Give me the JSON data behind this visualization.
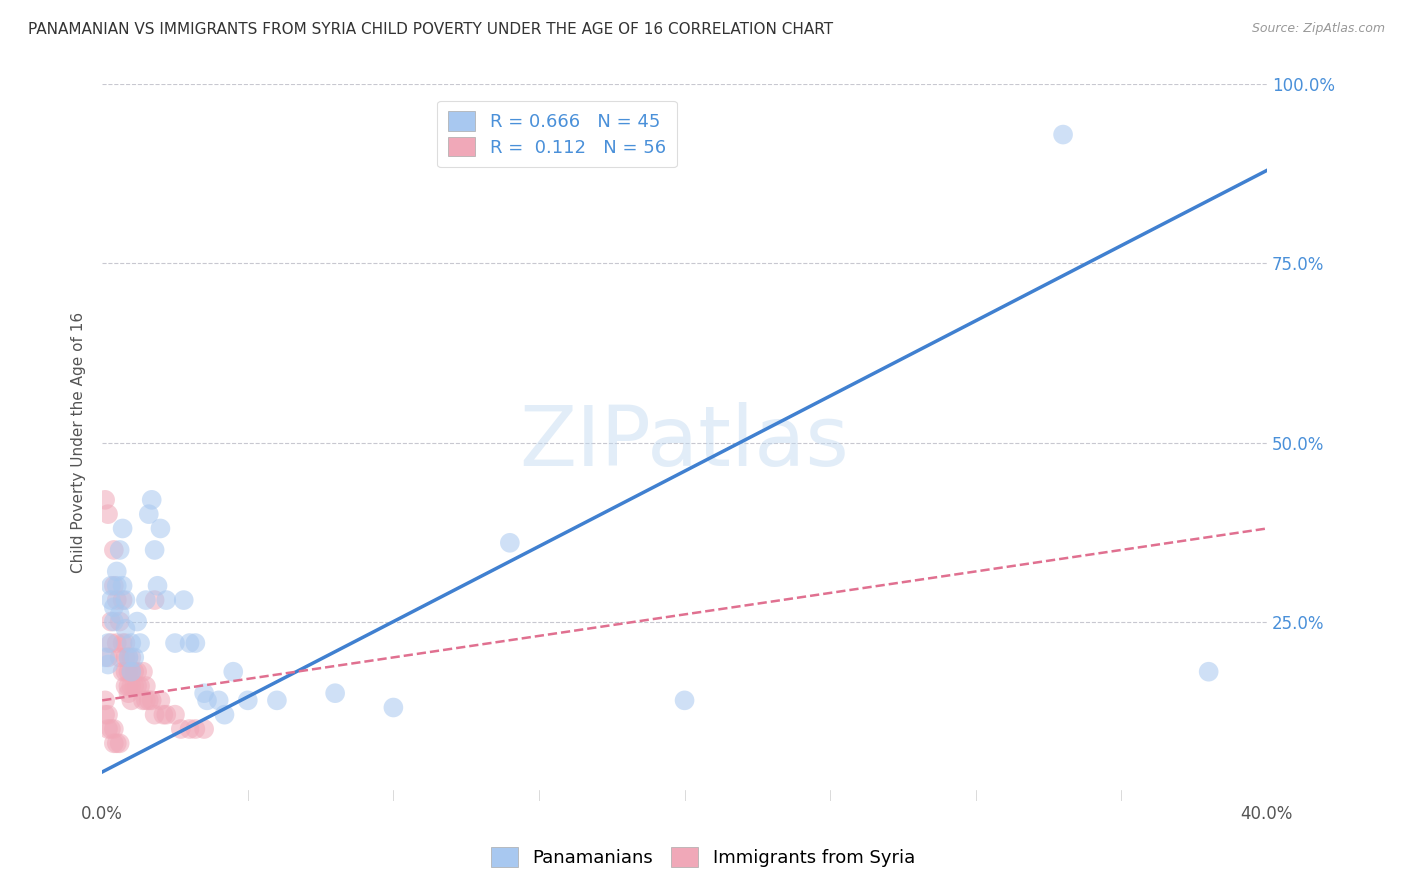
{
  "title": "PANAMANIAN VS IMMIGRANTS FROM SYRIA CHILD POVERTY UNDER THE AGE OF 16 CORRELATION CHART",
  "source": "Source: ZipAtlas.com",
  "ylabel": "Child Poverty Under the Age of 16",
  "xlabel": "",
  "xlim": [
    0.0,
    0.4
  ],
  "ylim": [
    0.0,
    1.0
  ],
  "xticks": [
    0.0,
    0.4
  ],
  "yticks": [
    0.0,
    0.25,
    0.5,
    0.75,
    1.0
  ],
  "xtick_labels": [
    "0.0%",
    "40.0%"
  ],
  "ytick_labels_right": [
    "",
    "25.0%",
    "50.0%",
    "75.0%",
    "100.0%"
  ],
  "background_color": "#ffffff",
  "grid_color": "#c8c8d0",
  "watermark": "ZIPatlas",
  "blue_R": 0.666,
  "blue_N": 45,
  "pink_R": 0.112,
  "pink_N": 56,
  "blue_color": "#a8c8f0",
  "pink_color": "#f0a8b8",
  "blue_line_color": "#4080d0",
  "pink_line_color": "#e07090",
  "blue_scatter": [
    [
      0.001,
      0.2
    ],
    [
      0.002,
      0.22
    ],
    [
      0.002,
      0.19
    ],
    [
      0.003,
      0.3
    ],
    [
      0.003,
      0.28
    ],
    [
      0.004,
      0.27
    ],
    [
      0.004,
      0.25
    ],
    [
      0.005,
      0.32
    ],
    [
      0.005,
      0.3
    ],
    [
      0.006,
      0.35
    ],
    [
      0.006,
      0.26
    ],
    [
      0.007,
      0.38
    ],
    [
      0.007,
      0.3
    ],
    [
      0.008,
      0.28
    ],
    [
      0.008,
      0.24
    ],
    [
      0.009,
      0.2
    ],
    [
      0.01,
      0.22
    ],
    [
      0.01,
      0.18
    ],
    [
      0.011,
      0.2
    ],
    [
      0.012,
      0.25
    ],
    [
      0.013,
      0.22
    ],
    [
      0.015,
      0.28
    ],
    [
      0.016,
      0.4
    ],
    [
      0.017,
      0.42
    ],
    [
      0.018,
      0.35
    ],
    [
      0.019,
      0.3
    ],
    [
      0.02,
      0.38
    ],
    [
      0.022,
      0.28
    ],
    [
      0.025,
      0.22
    ],
    [
      0.028,
      0.28
    ],
    [
      0.03,
      0.22
    ],
    [
      0.032,
      0.22
    ],
    [
      0.035,
      0.15
    ],
    [
      0.036,
      0.14
    ],
    [
      0.04,
      0.14
    ],
    [
      0.042,
      0.12
    ],
    [
      0.045,
      0.18
    ],
    [
      0.05,
      0.14
    ],
    [
      0.06,
      0.14
    ],
    [
      0.08,
      0.15
    ],
    [
      0.1,
      0.13
    ],
    [
      0.14,
      0.36
    ],
    [
      0.2,
      0.14
    ],
    [
      0.33,
      0.93
    ],
    [
      0.38,
      0.18
    ]
  ],
  "pink_scatter": [
    [
      0.001,
      0.42
    ],
    [
      0.002,
      0.4
    ],
    [
      0.002,
      0.2
    ],
    [
      0.003,
      0.22
    ],
    [
      0.003,
      0.25
    ],
    [
      0.004,
      0.3
    ],
    [
      0.004,
      0.35
    ],
    [
      0.005,
      0.28
    ],
    [
      0.005,
      0.22
    ],
    [
      0.006,
      0.25
    ],
    [
      0.006,
      0.2
    ],
    [
      0.007,
      0.28
    ],
    [
      0.007,
      0.22
    ],
    [
      0.007,
      0.18
    ],
    [
      0.008,
      0.22
    ],
    [
      0.008,
      0.2
    ],
    [
      0.008,
      0.18
    ],
    [
      0.008,
      0.16
    ],
    [
      0.009,
      0.2
    ],
    [
      0.009,
      0.18
    ],
    [
      0.009,
      0.16
    ],
    [
      0.009,
      0.15
    ],
    [
      0.01,
      0.2
    ],
    [
      0.01,
      0.18
    ],
    [
      0.01,
      0.16
    ],
    [
      0.01,
      0.14
    ],
    [
      0.011,
      0.18
    ],
    [
      0.011,
      0.16
    ],
    [
      0.012,
      0.18
    ],
    [
      0.012,
      0.16
    ],
    [
      0.013,
      0.16
    ],
    [
      0.014,
      0.14
    ],
    [
      0.014,
      0.18
    ],
    [
      0.015,
      0.16
    ],
    [
      0.015,
      0.14
    ],
    [
      0.016,
      0.14
    ],
    [
      0.017,
      0.14
    ],
    [
      0.018,
      0.12
    ],
    [
      0.018,
      0.28
    ],
    [
      0.02,
      0.14
    ],
    [
      0.021,
      0.12
    ],
    [
      0.022,
      0.12
    ],
    [
      0.025,
      0.12
    ],
    [
      0.027,
      0.1
    ],
    [
      0.03,
      0.1
    ],
    [
      0.032,
      0.1
    ],
    [
      0.035,
      0.1
    ],
    [
      0.001,
      0.14
    ],
    [
      0.001,
      0.12
    ],
    [
      0.002,
      0.12
    ],
    [
      0.002,
      0.1
    ],
    [
      0.003,
      0.1
    ],
    [
      0.004,
      0.1
    ],
    [
      0.004,
      0.08
    ],
    [
      0.005,
      0.08
    ],
    [
      0.006,
      0.08
    ]
  ],
  "blue_line_x": [
    0.0,
    0.4
  ],
  "blue_line_y": [
    0.04,
    0.88
  ],
  "pink_line_x": [
    0.0,
    0.4
  ],
  "pink_line_y": [
    0.14,
    0.38
  ],
  "legend_labels": [
    "Panamanians",
    "Immigrants from Syria"
  ],
  "title_fontsize": 11,
  "label_fontsize": 11,
  "tick_fontsize": 12,
  "legend_fontsize": 13
}
